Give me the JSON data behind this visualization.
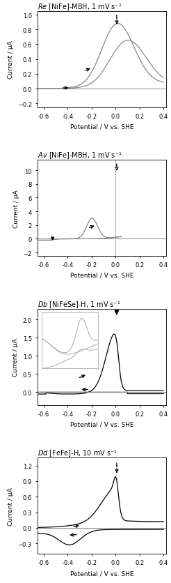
{
  "panels": [
    {
      "title_italic": "Re",
      "title_rest": " [NiFe]-MBH, 1 mV s⁻¹",
      "ylim": [
        -0.25,
        1.05
      ],
      "yticks": [
        -0.2,
        0.0,
        0.2,
        0.4,
        0.6,
        0.8,
        1.0
      ],
      "xlim": [
        -0.65,
        0.42
      ],
      "xticks": [
        -0.6,
        -0.4,
        -0.2,
        0.0,
        0.2,
        0.4
      ],
      "ylabel": "Current / μA",
      "has_xlabel": true
    },
    {
      "title_italic": "Av",
      "title_rest": " [NiFe]-MBH, 1 mV s⁻¹",
      "ylim": [
        -2.5,
        11.5
      ],
      "yticks": [
        -2,
        0,
        2,
        4,
        6,
        8,
        10
      ],
      "xlim": [
        -0.65,
        0.42
      ],
      "xticks": [
        -0.6,
        -0.4,
        -0.2,
        0.0,
        0.2,
        0.4
      ],
      "ylabel": "Current / μA",
      "has_xlabel": true
    },
    {
      "title_italic": "Db",
      "title_rest": " [NiFeSe]-H, 1 mV s⁻¹",
      "ylim": [
        -0.35,
        2.3
      ],
      "yticks": [
        0.0,
        0.5,
        1.0,
        1.5,
        2.0
      ],
      "xlim": [
        -0.65,
        0.42
      ],
      "xticks": [
        -0.6,
        -0.4,
        -0.2,
        0.0,
        0.2,
        0.4
      ],
      "ylabel": "Current / μA",
      "has_xlabel": true
    },
    {
      "title_italic": "Dd",
      "title_rest": " [FeFe]-H, 10 mV s⁻¹",
      "ylim": [
        -0.5,
        1.35
      ],
      "yticks": [
        -0.3,
        0.0,
        0.3,
        0.6,
        0.9,
        1.2
      ],
      "xlim": [
        -0.65,
        0.42
      ],
      "xticks": [
        -0.6,
        -0.4,
        -0.2,
        0.0,
        0.2,
        0.4
      ],
      "ylabel": "Current / μA",
      "has_xlabel": true
    }
  ]
}
